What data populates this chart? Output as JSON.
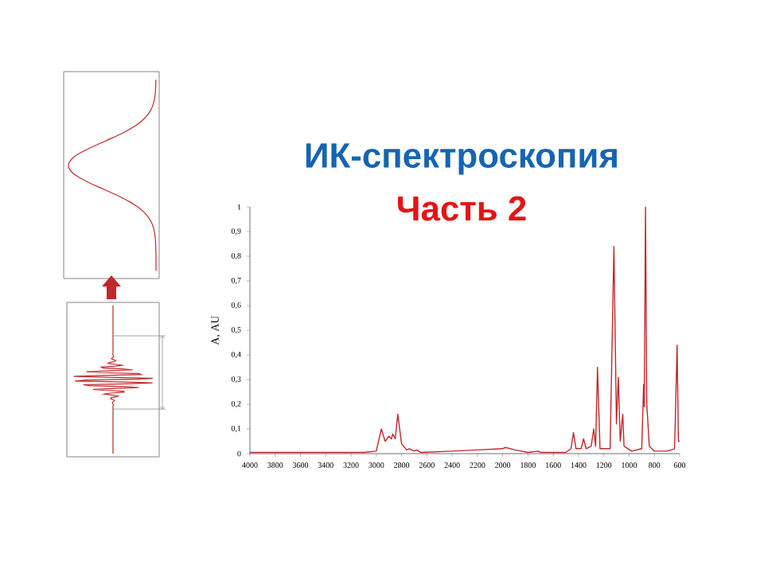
{
  "chart_data": {
    "type": "line",
    "title": "ИК-спектроскопия",
    "subtitle": "Часть 2",
    "ylabel": "A, AU",
    "x": [
      4000,
      3100,
      3000,
      2960,
      2930,
      2900,
      2880,
      2870,
      2850,
      2830,
      2800,
      2760,
      2740,
      2700,
      2680,
      2650,
      2400,
      2200,
      2000,
      1980,
      1900,
      1800,
      1720,
      1700,
      1500,
      1460,
      1440,
      1420,
      1380,
      1360,
      1340,
      1300,
      1280,
      1265,
      1250,
      1230,
      1150,
      1120,
      1100,
      1085,
      1070,
      1050,
      1040,
      980,
      900,
      885,
      880,
      870,
      860,
      840,
      800,
      700,
      640,
      620,
      610,
      600
    ],
    "series": [
      {
        "color": "#c0282d",
        "values": [
          0.005,
          0.005,
          0.01,
          0.1,
          0.05,
          0.07,
          0.06,
          0.08,
          0.06,
          0.16,
          0.04,
          0.015,
          0.02,
          0.01,
          0.015,
          0.005,
          0.01,
          0.015,
          0.02,
          0.025,
          0.015,
          0.005,
          0.01,
          0.005,
          0.005,
          0.02,
          0.085,
          0.02,
          0.02,
          0.06,
          0.02,
          0.03,
          0.1,
          0.03,
          0.35,
          0.02,
          0.02,
          0.84,
          0.12,
          0.31,
          0.05,
          0.16,
          0.03,
          0.01,
          0.02,
          0.28,
          0.19,
          1.0,
          0.2,
          0.03,
          0.01,
          0.01,
          0.02,
          0.44,
          0.05,
          0.05
        ]
      }
    ],
    "xlim": [
      4000,
      600
    ],
    "xticks": [
      4000,
      3800,
      3600,
      3400,
      3200,
      3000,
      2800,
      2600,
      2400,
      2200,
      2000,
      1800,
      1600,
      1400,
      1200,
      1000,
      800,
      600
    ],
    "ylim": [
      0,
      1
    ],
    "yticks": [
      {
        "value": 0,
        "label": "0"
      },
      {
        "value": 0.1,
        "label": "0,1"
      },
      {
        "value": 0.2,
        "label": "0,2"
      },
      {
        "value": 0.3,
        "label": "0,3"
      },
      {
        "value": 0.4,
        "label": "0,4"
      },
      {
        "value": 0.5,
        "label": "0,5"
      },
      {
        "value": 0.6,
        "label": "0,6"
      },
      {
        "value": 0.7,
        "label": "0,7"
      },
      {
        "value": 0.8,
        "label": "0,8"
      },
      {
        "value": 0.9,
        "label": "0,9"
      },
      {
        "value": 1,
        "label": "1"
      }
    ],
    "grid": false,
    "marker": "none",
    "line_style": "solid"
  }
}
